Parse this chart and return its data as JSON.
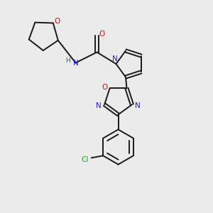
{
  "background_color": "#ebebeb",
  "bond_color": "#1a1a1a",
  "nitrogen_color": "#2020cc",
  "oxygen_color": "#cc1010",
  "chlorine_color": "#22aa22",
  "hydrogen_color": "#555555",
  "figsize": [
    3.0,
    3.0
  ],
  "dpi": 100,
  "xlim": [
    0,
    10
  ],
  "ylim": [
    0,
    10
  ]
}
